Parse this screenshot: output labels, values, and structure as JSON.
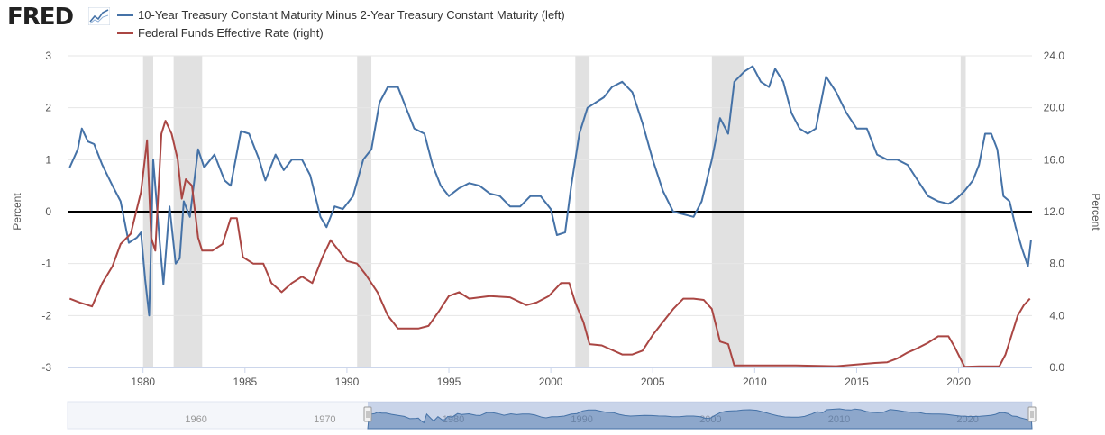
{
  "header": {
    "logo": "FRED",
    "logo_icon": "line-chart-icon",
    "legend": [
      {
        "label": "10-Year Treasury Constant Maturity Minus 2-Year Treasury Constant Maturity (left)",
        "color": "#4572a7"
      },
      {
        "label": "Federal Funds Effective Rate (right)",
        "color": "#aa4643"
      }
    ]
  },
  "navigator": {
    "tick_labels": [
      "1960",
      "1970",
      "1980",
      "1990",
      "2000",
      "2010",
      "2020"
    ]
  },
  "chart_data": {
    "type": "line",
    "left_axis": {
      "label": "Percent",
      "ylim": [
        -3,
        3
      ],
      "ticks": [
        3,
        2,
        1,
        0,
        -1,
        -2,
        -3
      ],
      "tick_labels": [
        "3",
        "2",
        "1",
        "0",
        "-1",
        "-2",
        "-3"
      ]
    },
    "right_axis": {
      "label": "Percent",
      "ylim": [
        0,
        24
      ],
      "ticks": [
        24,
        20,
        16,
        12,
        8,
        4,
        0
      ],
      "tick_labels": [
        "24.0",
        "20.0",
        "16.0",
        "12.0",
        "8.0",
        "4.0",
        "0.0"
      ]
    },
    "x_axis": {
      "xlim": [
        1976.3,
        2023.6
      ],
      "ticks": [
        1980,
        1985,
        1990,
        1995,
        2000,
        2005,
        2010,
        2015,
        2020
      ],
      "tick_labels": [
        "1980",
        "1985",
        "1990",
        "1995",
        "2000",
        "2005",
        "2010",
        "2015",
        "2020"
      ]
    },
    "recessions": [
      [
        1980.0,
        1980.5
      ],
      [
        1981.5,
        1982.9
      ],
      [
        1990.5,
        1991.2
      ],
      [
        2001.2,
        2001.9
      ],
      [
        2007.9,
        2009.5
      ],
      [
        2020.1,
        2020.35
      ]
    ],
    "zero_line": true,
    "series": [
      {
        "name": "10-Year Treasury Constant Maturity Minus 2-Year Treasury Constant Maturity (left)",
        "color": "#4572a7",
        "axis": "left",
        "x": [
          1976.4,
          1976.8,
          1977.0,
          1977.3,
          1977.6,
          1978.0,
          1978.5,
          1978.9,
          1979.3,
          1979.7,
          1979.9,
          1980.1,
          1980.3,
          1980.5,
          1980.8,
          1981.0,
          1981.3,
          1981.6,
          1981.8,
          1982.0,
          1982.3,
          1982.7,
          1983.0,
          1983.5,
          1984.0,
          1984.3,
          1984.8,
          1985.2,
          1985.7,
          1986.0,
          1986.5,
          1986.9,
          1987.3,
          1987.8,
          1988.2,
          1988.7,
          1989.0,
          1989.4,
          1989.8,
          1990.3,
          1990.8,
          1991.2,
          1991.6,
          1992.0,
          1992.5,
          1992.9,
          1993.3,
          1993.8,
          1994.2,
          1994.6,
          1995.0,
          1995.5,
          1996.0,
          1996.5,
          1997.0,
          1997.5,
          1998.0,
          1998.5,
          1999.0,
          1999.5,
          2000.0,
          2000.3,
          2000.7,
          2001.0,
          2001.4,
          2001.8,
          2002.2,
          2002.6,
          2003.0,
          2003.5,
          2004.0,
          2004.5,
          2005.0,
          2005.5,
          2006.0,
          2006.5,
          2007.0,
          2007.4,
          2007.9,
          2008.3,
          2008.7,
          2009.0,
          2009.5,
          2009.9,
          2010.3,
          2010.7,
          2011.0,
          2011.4,
          2011.8,
          2012.2,
          2012.6,
          2013.0,
          2013.5,
          2014.0,
          2014.5,
          2015.0,
          2015.5,
          2016.0,
          2016.5,
          2017.0,
          2017.5,
          2018.0,
          2018.5,
          2019.0,
          2019.5,
          2019.9,
          2020.3,
          2020.7,
          2021.0,
          2021.3,
          2021.6,
          2021.9,
          2022.2,
          2022.5,
          2022.8,
          2023.1,
          2023.4,
          2023.55
        ],
        "values": [
          0.85,
          1.2,
          1.6,
          1.35,
          1.3,
          0.9,
          0.5,
          0.2,
          -0.6,
          -0.5,
          -0.4,
          -1.3,
          -2.0,
          1.0,
          -0.5,
          -1.4,
          0.1,
          -1.0,
          -0.9,
          0.2,
          -0.1,
          1.2,
          0.85,
          1.1,
          0.6,
          0.5,
          1.55,
          1.5,
          1.0,
          0.6,
          1.1,
          0.8,
          1.0,
          1.0,
          0.7,
          -0.1,
          -0.3,
          0.1,
          0.05,
          0.3,
          1.0,
          1.2,
          2.1,
          2.4,
          2.4,
          2.0,
          1.6,
          1.5,
          0.9,
          0.5,
          0.3,
          0.45,
          0.55,
          0.5,
          0.35,
          0.3,
          0.1,
          0.1,
          0.3,
          0.3,
          0.05,
          -0.45,
          -0.4,
          0.5,
          1.5,
          2.0,
          2.1,
          2.2,
          2.4,
          2.5,
          2.3,
          1.7,
          1.0,
          0.4,
          0.0,
          -0.05,
          -0.1,
          0.2,
          1.0,
          1.8,
          1.5,
          2.5,
          2.7,
          2.8,
          2.5,
          2.4,
          2.75,
          2.5,
          1.9,
          1.6,
          1.5,
          1.6,
          2.6,
          2.3,
          1.9,
          1.6,
          1.6,
          1.1,
          1.0,
          1.0,
          0.9,
          0.6,
          0.3,
          0.2,
          0.15,
          0.25,
          0.4,
          0.6,
          0.9,
          1.5,
          1.5,
          1.2,
          0.3,
          0.2,
          -0.3,
          -0.7,
          -1.05,
          -0.55
        ]
      },
      {
        "name": "Federal Funds Effective Rate (right)",
        "color": "#aa4643",
        "axis": "right",
        "x": [
          1976.4,
          1976.9,
          1977.5,
          1978.0,
          1978.5,
          1978.9,
          1979.4,
          1979.9,
          1980.2,
          1980.4,
          1980.6,
          1980.9,
          1981.1,
          1981.4,
          1981.7,
          1981.9,
          1982.1,
          1982.4,
          1982.7,
          1982.9,
          1983.4,
          1983.9,
          1984.3,
          1984.6,
          1984.9,
          1985.4,
          1985.9,
          1986.3,
          1986.8,
          1987.3,
          1987.8,
          1988.3,
          1988.8,
          1989.2,
          1989.6,
          1990.0,
          1990.5,
          1990.9,
          1991.5,
          1992.0,
          1992.5,
          1993.0,
          1993.5,
          1994.0,
          1994.5,
          1995.0,
          1995.5,
          1996.0,
          1997.0,
          1998.0,
          1998.8,
          1999.3,
          1999.9,
          2000.5,
          2000.9,
          2001.2,
          2001.6,
          2001.9,
          2002.5,
          2003.5,
          2004.0,
          2004.5,
          2005.0,
          2005.5,
          2006.0,
          2006.5,
          2007.0,
          2007.5,
          2007.9,
          2008.3,
          2008.7,
          2009.0,
          2010.0,
          2012.0,
          2014.0,
          2015.9,
          2016.5,
          2017.0,
          2017.5,
          2018.0,
          2018.5,
          2019.0,
          2019.5,
          2019.8,
          2020.1,
          2020.3,
          2021.0,
          2022.0,
          2022.3,
          2022.6,
          2022.9,
          2023.2,
          2023.5
        ],
        "values": [
          5.3,
          5.0,
          4.7,
          6.5,
          7.8,
          9.5,
          10.3,
          13.5,
          17.5,
          10.0,
          9.0,
          18.0,
          19.0,
          18.0,
          16.0,
          13.0,
          14.5,
          14.0,
          10.0,
          9.0,
          9.0,
          9.5,
          11.5,
          11.5,
          8.5,
          8.0,
          8.0,
          6.5,
          5.8,
          6.5,
          7.0,
          6.5,
          8.5,
          9.8,
          9.0,
          8.2,
          8.0,
          7.2,
          5.8,
          4.0,
          3.0,
          3.0,
          3.0,
          3.2,
          4.3,
          5.5,
          5.8,
          5.3,
          5.5,
          5.4,
          4.8,
          5.0,
          5.5,
          6.5,
          6.5,
          5.0,
          3.5,
          1.8,
          1.7,
          1.0,
          1.0,
          1.3,
          2.5,
          3.5,
          4.5,
          5.3,
          5.3,
          5.2,
          4.5,
          2.0,
          1.8,
          0.15,
          0.15,
          0.15,
          0.1,
          0.35,
          0.4,
          0.7,
          1.15,
          1.5,
          1.9,
          2.4,
          2.4,
          1.6,
          0.65,
          0.05,
          0.08,
          0.1,
          1.0,
          2.5,
          4.0,
          4.8,
          5.3
        ]
      }
    ]
  }
}
